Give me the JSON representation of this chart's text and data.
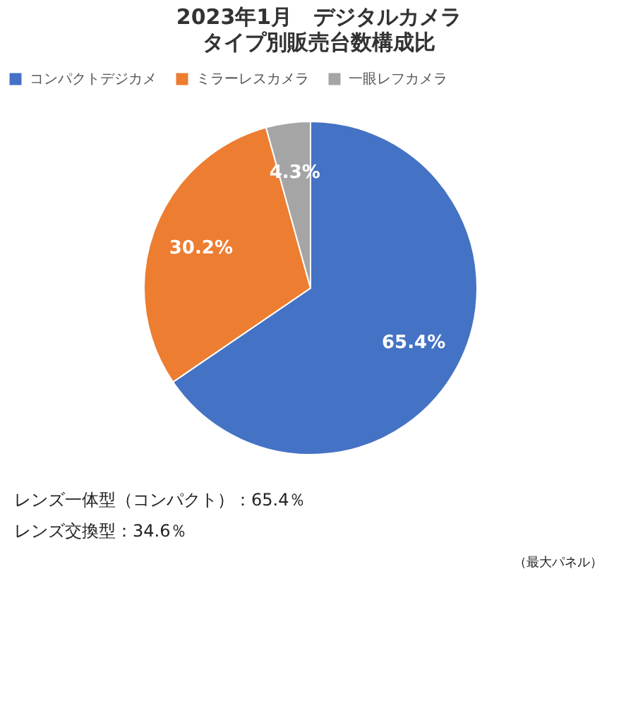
{
  "chart_data": {
    "type": "pie",
    "title": "2023年1月　デジタルカメラ",
    "subtitle": "タイプ別販売台数構成比",
    "categories": [
      "コンパクトデジカメ",
      "ミラーレスカメラ",
      "一眼レフカメラ"
    ],
    "values": [
      65.4,
      30.2,
      4.3
    ],
    "colors": [
      "#4472c4",
      "#ed7d31",
      "#a5a5a5"
    ],
    "value_labels": [
      "65.4%",
      "30.2%",
      "4.3%"
    ],
    "legend": "top",
    "annotations": [
      "レンズ一体型（コンパクト）：65.4％",
      "レンズ交換型：34.6％",
      "（最大パネル）"
    ]
  }
}
